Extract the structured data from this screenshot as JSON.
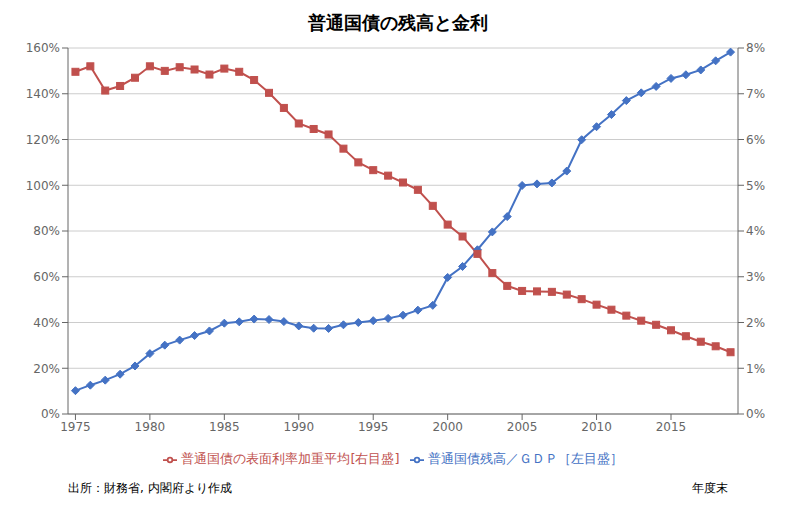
{
  "chart_data": {
    "type": "line",
    "title": "普通国債の残高と金利",
    "annotations": [
      "出所：財務省, 内閣府より作成",
      "年度末"
    ],
    "x": [
      1975,
      1976,
      1977,
      1978,
      1979,
      1980,
      1981,
      1982,
      1983,
      1984,
      1985,
      1986,
      1987,
      1988,
      1989,
      1990,
      1991,
      1992,
      1993,
      1994,
      1995,
      1996,
      1997,
      1998,
      1999,
      2000,
      2001,
      2002,
      2003,
      2004,
      2005,
      2006,
      2007,
      2008,
      2009,
      2010,
      2011,
      2012,
      2013,
      2014,
      2015,
      2016,
      2017,
      2018,
      2019
    ],
    "series": [
      {
        "name": "普通国債残高／ＧＤＰ［左目盛］",
        "color": "#4472C4",
        "marker": "diamond",
        "values": [
          0.102,
          0.126,
          0.148,
          0.174,
          0.21,
          0.264,
          0.301,
          0.323,
          0.343,
          0.363,
          0.397,
          0.403,
          0.415,
          0.413,
          0.404,
          0.385,
          0.375,
          0.374,
          0.39,
          0.4,
          0.408,
          0.418,
          0.432,
          0.454,
          0.475,
          0.597,
          0.645,
          0.718,
          0.796,
          0.863,
          0.999,
          1.006,
          1.01,
          1.062,
          1.199,
          1.256,
          1.309,
          1.37,
          1.404,
          1.432,
          1.467,
          1.483,
          1.504,
          1.544,
          1.582
        ]
      },
      {
        "name": "普通国債の表面利率加重平均[右目盛]",
        "color": "#C0504D",
        "marker": "square",
        "axis": "y2",
        "values": [
          0.0748,
          0.076,
          0.0707,
          0.0717,
          0.0735,
          0.076,
          0.075,
          0.0758,
          0.0753,
          0.0742,
          0.0755,
          0.0748,
          0.073,
          0.0702,
          0.0669,
          0.0635,
          0.0623,
          0.0611,
          0.058,
          0.055,
          0.0533,
          0.0521,
          0.0506,
          0.049,
          0.0455,
          0.0414,
          0.0388,
          0.035,
          0.0308,
          0.028,
          0.0269,
          0.0268,
          0.0267,
          0.0261,
          0.0251,
          0.0239,
          0.0228,
          0.0215,
          0.0204,
          0.0195,
          0.0183,
          0.017,
          0.0158,
          0.0148,
          0.0135
        ]
      }
    ],
    "xlim": [
      1974.5,
      2019.5
    ],
    "xticks": [
      1975,
      1980,
      1985,
      1990,
      1995,
      2000,
      2005,
      2010,
      2015
    ],
    "ylim": [
      0.0,
      1.6
    ],
    "yticks": [
      {
        "value": 0.0,
        "label": "0%"
      },
      {
        "value": 0.2,
        "label": "20%"
      },
      {
        "value": 0.4,
        "label": "40%"
      },
      {
        "value": 0.6,
        "label": "60%"
      },
      {
        "value": 0.8,
        "label": "80%"
      },
      {
        "value": 1.0,
        "label": "100%"
      },
      {
        "value": 1.2,
        "label": "120%"
      },
      {
        "value": 1.4,
        "label": "140%"
      },
      {
        "value": 1.6,
        "label": "160%"
      }
    ],
    "y2lim": [
      0.0,
      0.08
    ],
    "y2ticks": [
      {
        "value": 0.0,
        "label": "0%"
      },
      {
        "value": 0.01,
        "label": "1%"
      },
      {
        "value": 0.02,
        "label": "2%"
      },
      {
        "value": 0.03,
        "label": "3%"
      },
      {
        "value": 0.04,
        "label": "4%"
      },
      {
        "value": 0.05,
        "label": "5%"
      },
      {
        "value": 0.06,
        "label": "6%"
      },
      {
        "value": 0.07,
        "label": "7%"
      },
      {
        "value": 0.08,
        "label": "8%"
      }
    ],
    "grid": true,
    "legend": "bottom"
  }
}
